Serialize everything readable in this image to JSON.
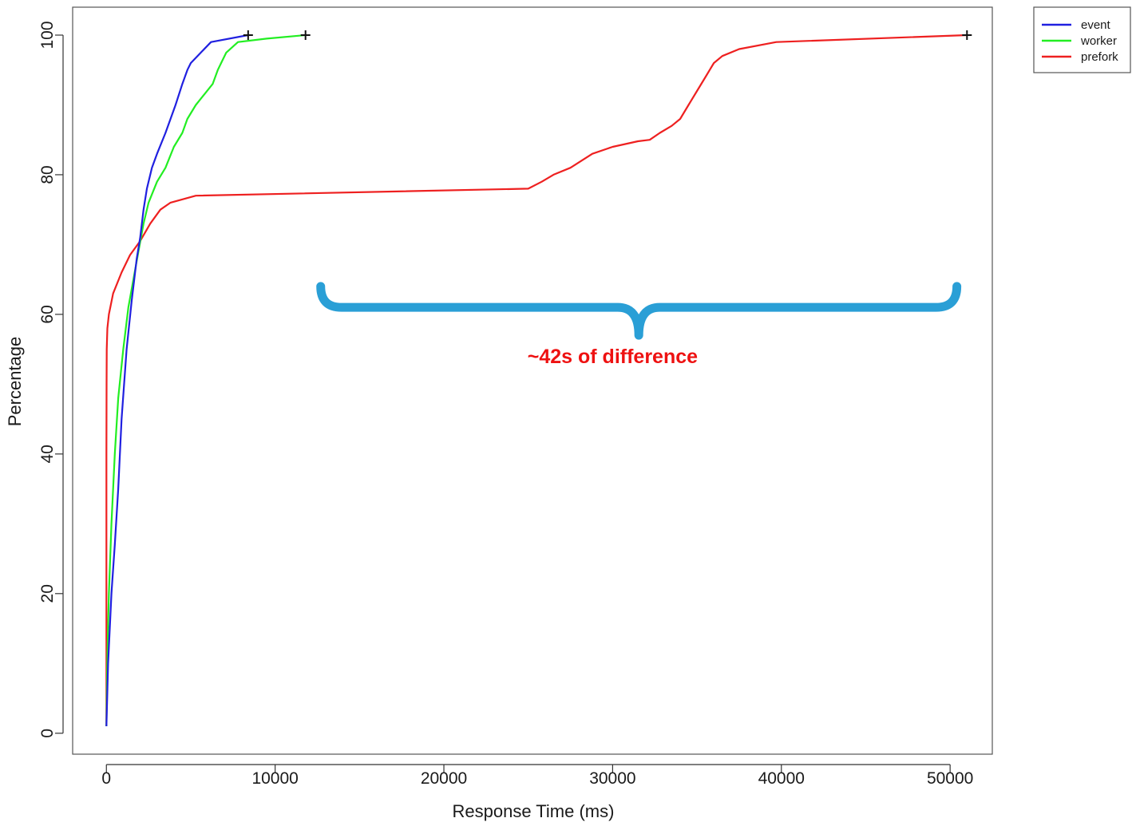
{
  "chart_data": {
    "type": "line",
    "title": "",
    "xlabel": "Response Time (ms)",
    "ylabel": "Percentage",
    "xlim": [
      -2000,
      52500
    ],
    "ylim": [
      -3,
      104
    ],
    "x_ticks": [
      0,
      10000,
      20000,
      30000,
      40000,
      50000
    ],
    "x_tick_labels": [
      "0",
      "10000",
      "20000",
      "30000",
      "40000",
      "50000"
    ],
    "y_ticks": [
      0,
      20,
      40,
      60,
      80,
      100
    ],
    "y_tick_labels": [
      "0",
      "20",
      "40",
      "60",
      "80",
      "100"
    ],
    "grid": false,
    "legend_position": "top-right, outside plot",
    "series": [
      {
        "name": "event",
        "color": "#2020e0",
        "points": [
          [
            0,
            1
          ],
          [
            100,
            10
          ],
          [
            300,
            20
          ],
          [
            500,
            27
          ],
          [
            700,
            35
          ],
          [
            900,
            45
          ],
          [
            1200,
            55
          ],
          [
            1500,
            62
          ],
          [
            1800,
            68
          ],
          [
            2000,
            71
          ],
          [
            2200,
            75
          ],
          [
            2400,
            78
          ],
          [
            2700,
            81
          ],
          [
            3000,
            83
          ],
          [
            3500,
            86
          ],
          [
            3800,
            88
          ],
          [
            4100,
            90
          ],
          [
            4500,
            93
          ],
          [
            4800,
            95
          ],
          [
            5000,
            96
          ],
          [
            5400,
            97
          ],
          [
            6200,
            99
          ],
          [
            8400,
            100
          ]
        ],
        "end_marker": [
          8400,
          100
        ]
      },
      {
        "name": "worker",
        "color": "#22ee22",
        "points": [
          [
            0,
            1
          ],
          [
            50,
            10
          ],
          [
            150,
            20
          ],
          [
            300,
            30
          ],
          [
            500,
            40
          ],
          [
            700,
            48
          ],
          [
            1000,
            55
          ],
          [
            1300,
            61
          ],
          [
            1600,
            65
          ],
          [
            1900,
            69
          ],
          [
            2200,
            73
          ],
          [
            2500,
            76
          ],
          [
            3000,
            79
          ],
          [
            3500,
            81
          ],
          [
            4000,
            84
          ],
          [
            4500,
            86
          ],
          [
            4800,
            88
          ],
          [
            5300,
            90
          ],
          [
            5800,
            91.5
          ],
          [
            6300,
            93
          ],
          [
            6600,
            95
          ],
          [
            6800,
            96
          ],
          [
            7100,
            97.5
          ],
          [
            7800,
            99
          ],
          [
            9500,
            99.5
          ],
          [
            11800,
            100
          ]
        ],
        "end_marker": [
          11800,
          100
        ]
      },
      {
        "name": "prefork",
        "color": "#ee2020",
        "points": [
          [
            0,
            1
          ],
          [
            0,
            40
          ],
          [
            10,
            50
          ],
          [
            20,
            55
          ],
          [
            60,
            58
          ],
          [
            150,
            60
          ],
          [
            400,
            63
          ],
          [
            900,
            66
          ],
          [
            1400,
            68.5
          ],
          [
            2000,
            70.5
          ],
          [
            2600,
            73
          ],
          [
            3200,
            75
          ],
          [
            3800,
            76
          ],
          [
            5300,
            77
          ],
          [
            25000,
            78
          ],
          [
            25800,
            79
          ],
          [
            26500,
            80
          ],
          [
            27500,
            81
          ],
          [
            28800,
            83
          ],
          [
            30000,
            84
          ],
          [
            31500,
            84.8
          ],
          [
            32200,
            85
          ],
          [
            32800,
            86
          ],
          [
            33500,
            87
          ],
          [
            34000,
            88
          ],
          [
            34500,
            90
          ],
          [
            35000,
            92
          ],
          [
            35500,
            94
          ],
          [
            36000,
            96
          ],
          [
            36500,
            97
          ],
          [
            37500,
            98
          ],
          [
            39700,
            99
          ],
          [
            51000,
            100
          ]
        ],
        "end_marker": [
          51000,
          100
        ]
      }
    ],
    "annotations": [
      {
        "type": "brace",
        "x_start": 12700,
        "x_end": 50400,
        "y_top": 64,
        "y_bottom": 61,
        "y_tip": 57,
        "color": "#2a9fd6"
      },
      {
        "type": "text",
        "text": "~42s of difference",
        "x": 30000,
        "y": 53,
        "color": "#ee1111"
      }
    ]
  }
}
